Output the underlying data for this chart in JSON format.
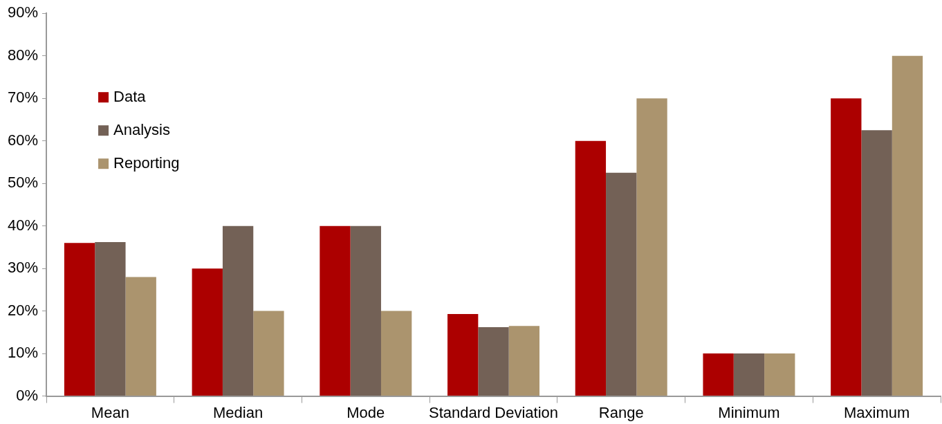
{
  "chart_data": {
    "type": "bar",
    "categories": [
      "Mean",
      "Median",
      "Mode",
      "Standard Deviation",
      "Range",
      "Minimum",
      "Maximum"
    ],
    "series": [
      {
        "name": "Data",
        "color": "#ac0000",
        "values": [
          36,
          30,
          40,
          19.3,
          60,
          10,
          70
        ]
      },
      {
        "name": "Analysis",
        "color": "#736156",
        "values": [
          36.2,
          40,
          40,
          16.2,
          52.5,
          10,
          62.5
        ]
      },
      {
        "name": "Reporting",
        "color": "#ab946e",
        "values": [
          28,
          20,
          20,
          16.5,
          70,
          10,
          80
        ]
      }
    ],
    "ylim": [
      0,
      90
    ],
    "yticks": [
      {
        "value": 0,
        "label": "0%"
      },
      {
        "value": 10,
        "label": "10%"
      },
      {
        "value": 20,
        "label": "20%"
      },
      {
        "value": 30,
        "label": "30%"
      },
      {
        "value": 40,
        "label": "40%"
      },
      {
        "value": 50,
        "label": "50%"
      },
      {
        "value": 60,
        "label": "60%"
      },
      {
        "value": 70,
        "label": "70%"
      },
      {
        "value": 80,
        "label": "80%"
      },
      {
        "value": 90,
        "label": "90%"
      }
    ],
    "grid": false,
    "legend": "top left"
  }
}
